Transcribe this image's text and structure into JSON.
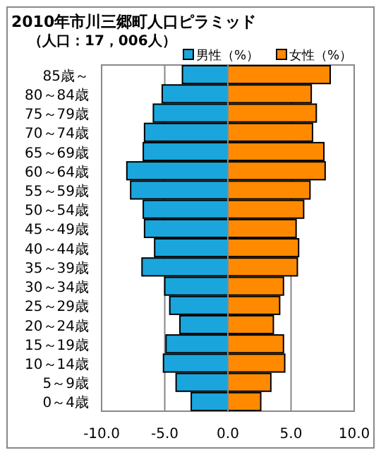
{
  "chart_data": {
    "type": "bar",
    "orientation": "horizontal",
    "title": "2010年市川三郷町人口ピラミッド",
    "subtitle": "（人口：17，006人）",
    "categories": [
      "85歳～",
      "80～84歳",
      "75～79歳",
      "70～74歳",
      "65～69歳",
      "60～64歳",
      "55～59歳",
      "50～54歳",
      "45～49歳",
      "40～44歳",
      "35～39歳",
      "30～34歳",
      "25～29歳",
      "20～24歳",
      "15～19歳",
      "10～14歳",
      "5～9歳",
      "0～4歳"
    ],
    "series": [
      {
        "name": "男性（%）",
        "color": "#1aa6dc",
        "values": [
          -3.6,
          -5.2,
          -5.9,
          -6.6,
          -6.7,
          -8.0,
          -7.7,
          -6.7,
          -6.6,
          -5.8,
          -6.8,
          -5.0,
          -4.6,
          -3.8,
          -4.9,
          -5.1,
          -4.1,
          -2.9
        ]
      },
      {
        "name": "女性（%）",
        "color": "#ff8a00",
        "values": [
          8.1,
          6.6,
          7.0,
          6.7,
          7.6,
          7.7,
          6.5,
          6.0,
          5.4,
          5.6,
          5.5,
          4.4,
          4.1,
          3.6,
          4.4,
          4.5,
          3.4,
          2.6
        ]
      }
    ],
    "xlim": [
      -10,
      10
    ],
    "xticks": [
      {
        "value": -10,
        "label": "-10.0"
      },
      {
        "value": -5,
        "label": "-5.0"
      },
      {
        "value": 0,
        "label": "0.0"
      },
      {
        "value": 5,
        "label": "5.0"
      },
      {
        "value": 10,
        "label": "10.0"
      }
    ],
    "grid": "x",
    "legend": "top",
    "stacked": true
  }
}
